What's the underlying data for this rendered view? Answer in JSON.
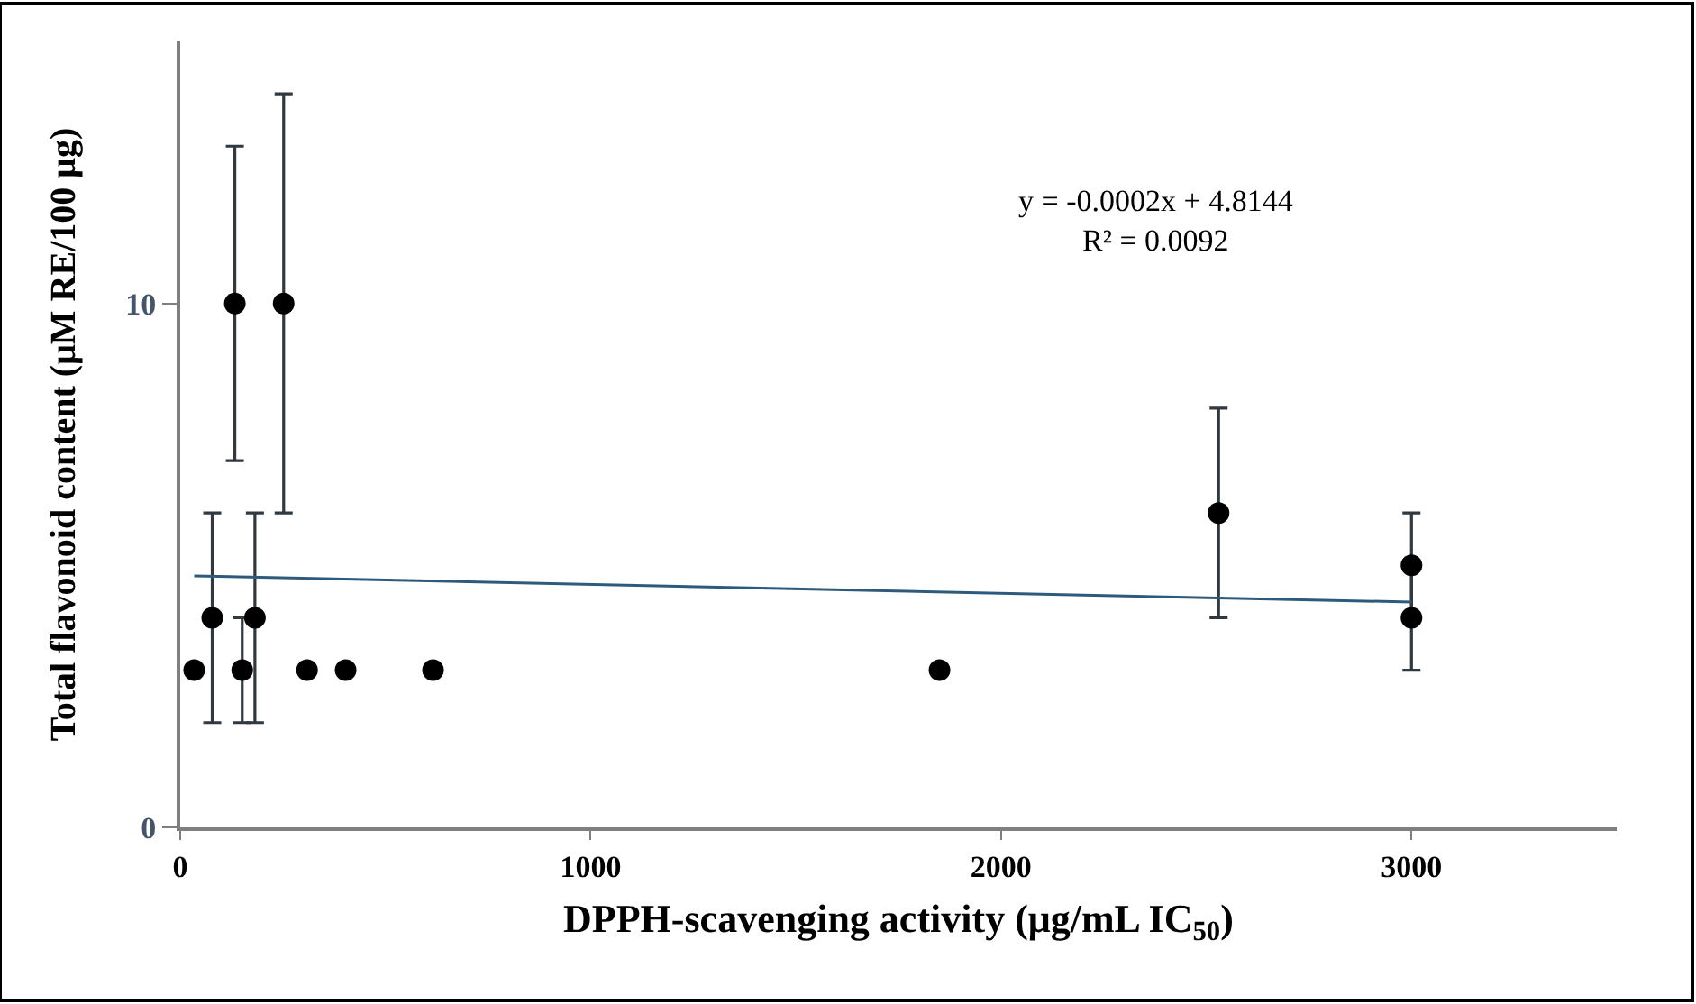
{
  "chart_data": {
    "type": "scatter",
    "xlabel": "DPPH-scavenging activity (μg/mL IC$_{50}$)",
    "ylabel": "Total flavonoid content (μM RE/100 μg)",
    "annotations": [
      "y = -0.0002x + 4.8144\nR² = 0.0092"
    ],
    "xlim": [
      0,
      3500
    ],
    "xticks": [
      0,
      1000,
      2000,
      3000
    ],
    "ylim": [
      0,
      15
    ],
    "yticks": [
      0,
      10
    ],
    "marker": "circle",
    "series": [
      {
        "color": "#000000",
        "x": [
          34,
          78,
          133,
          151,
          182,
          252,
          309,
          403,
          616,
          1850,
          2530,
          3000,
          3000
        ],
        "values": [
          3,
          4,
          10,
          3,
          4,
          10,
          3,
          3,
          3,
          3,
          6,
          5,
          4
        ],
        "errors": [
          null,
          2,
          3,
          [
            2,
            4
          ],
          [
            2,
            6
          ],
          4,
          null,
          null,
          null,
          null,
          2,
          1,
          1
        ]
      },
      {
        "type": "line",
        "color": "#2e5a7d",
        "x": [
          34,
          3000
        ],
        "values": [
          4.8,
          4.3
        ],
        "marker": "none",
        "line_style": "solid"
      }
    ]
  }
}
